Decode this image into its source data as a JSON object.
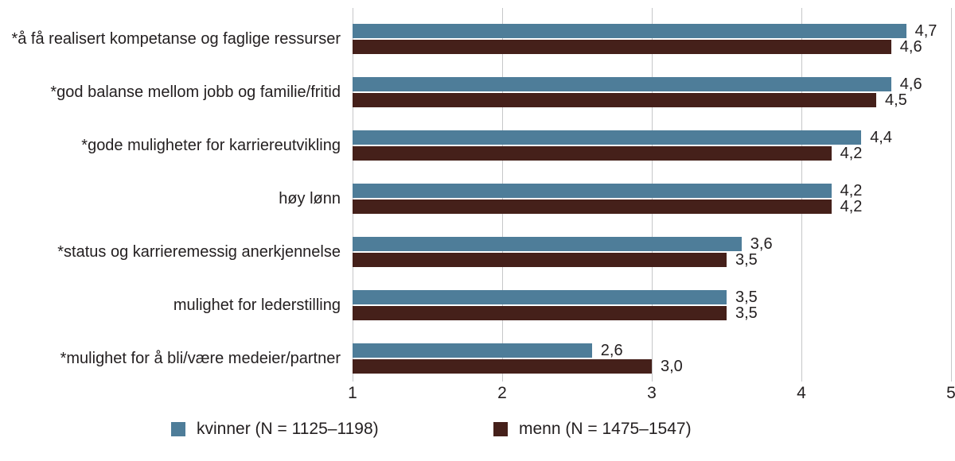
{
  "chart_data": {
    "type": "bar",
    "orientation": "horizontal",
    "title": "",
    "categories": [
      "*å få realisert kompetanse og faglige ressurser",
      "*god balanse mellom jobb og familie/fritid",
      "*gode muligheter for karriereutvikling",
      "høy lønn",
      "*status og karrieremessig anerkjennelse",
      "mulighet for lederstilling",
      "*mulighet for å bli/være medeier/partner"
    ],
    "series": [
      {
        "name": "kvinner (N = 1125–1198)",
        "color": "#4e7d99",
        "values": [
          4.7,
          4.6,
          4.4,
          4.2,
          3.6,
          3.5,
          2.6
        ],
        "value_labels": [
          "4,7",
          "4,6",
          "4,4",
          "4,2",
          "3,6",
          "3,5",
          "2,6"
        ]
      },
      {
        "name": "menn (N = 1475–1547)",
        "color": "#45201a",
        "values": [
          4.6,
          4.5,
          4.2,
          4.2,
          3.5,
          3.5,
          3.0
        ],
        "value_labels": [
          "4,6",
          "4,5",
          "4,2",
          "4,2",
          "3,5",
          "3,5",
          "3,0"
        ]
      }
    ],
    "xlim": [
      1,
      5
    ],
    "x_ticks": [
      "1",
      "2",
      "3",
      "4",
      "5"
    ],
    "grid": "vertical-only",
    "gridline_color": "#c6c7c9",
    "text_color": "#242021",
    "legend_position": "bottom"
  }
}
